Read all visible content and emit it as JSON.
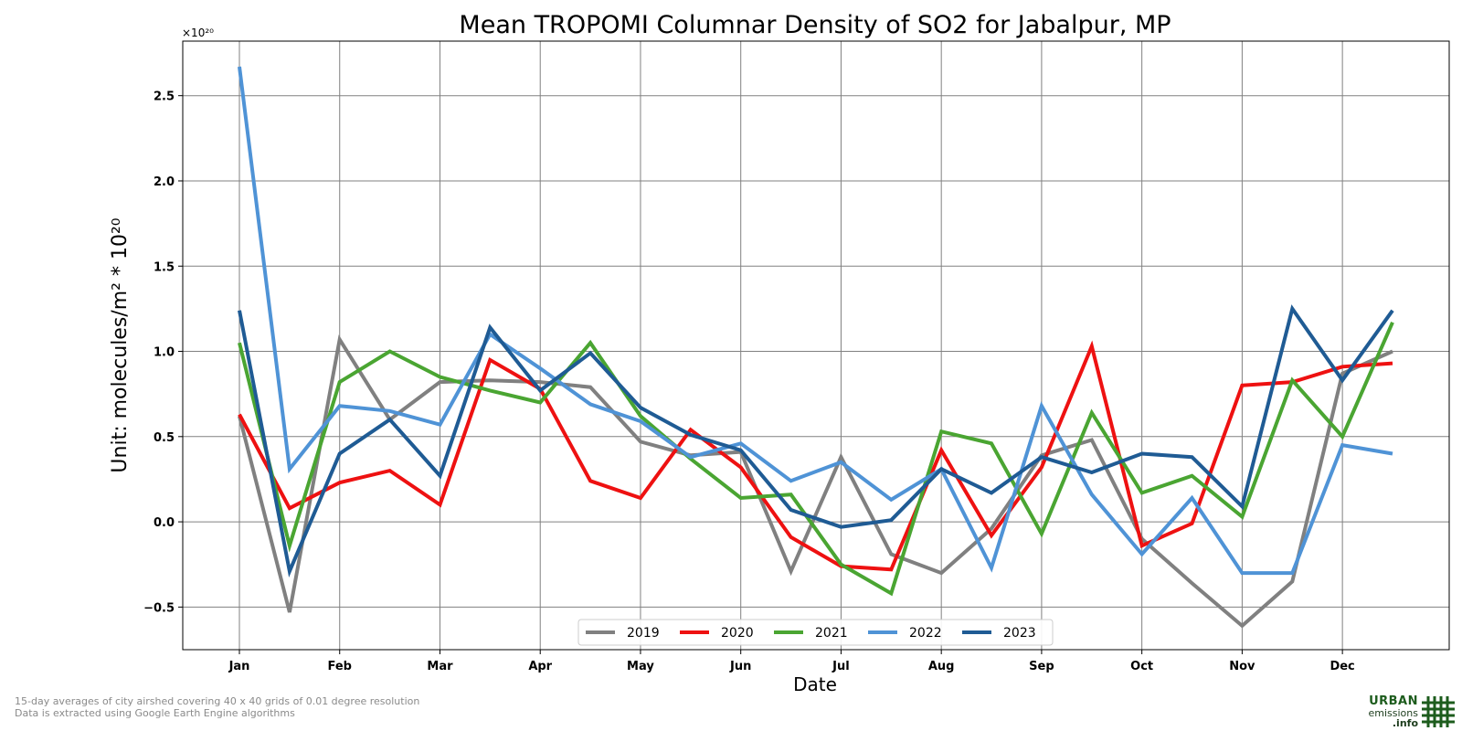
{
  "chart_data": {
    "type": "line",
    "title": "Mean TROPOMI Columnar Density of SO2 for Jabalpur, MP",
    "xlabel": "Date",
    "ylabel": "Unit: molecules/m² * 10²⁰",
    "y_offset_label": "×10²⁰",
    "ylim": [
      -0.75,
      2.82
    ],
    "yticks": [
      -0.5,
      0.0,
      0.5,
      1.0,
      1.5,
      2.0,
      2.5
    ],
    "ytick_labels": [
      "−0.5",
      "0.0",
      "0.5",
      "1.0",
      "1.5",
      "2.0",
      "2.5"
    ],
    "xtick_labels": [
      "Jan",
      "Feb",
      "Mar",
      "Apr",
      "May",
      "Jun",
      "Jul",
      "Aug",
      "Sep",
      "Oct",
      "Nov",
      "Dec"
    ],
    "grid": true,
    "legend_position": "bottom-center",
    "series": [
      {
        "name": "2019",
        "color": "#808080",
        "values": [
          0.62,
          -0.53,
          1.07,
          0.6,
          0.82,
          0.83,
          0.82,
          0.79,
          0.47,
          0.39,
          0.41,
          -0.29,
          0.38,
          -0.19,
          -0.3,
          -0.04,
          0.39,
          0.48,
          -0.1,
          -0.36,
          -0.61,
          -0.35,
          0.87,
          1.0
        ]
      },
      {
        "name": "2020",
        "color": "#ee1111",
        "values": [
          0.63,
          0.08,
          0.23,
          0.3,
          0.1,
          0.95,
          0.78,
          0.24,
          0.14,
          0.54,
          0.32,
          -0.09,
          -0.26,
          -0.28,
          0.42,
          -0.08,
          0.32,
          1.03,
          -0.14,
          -0.01,
          0.8,
          0.82,
          0.91,
          0.93
        ]
      },
      {
        "name": "2021",
        "color": "#4aa532",
        "values": [
          1.05,
          -0.14,
          0.82,
          1.0,
          0.85,
          0.77,
          0.7,
          1.05,
          0.62,
          0.37,
          0.14,
          0.16,
          -0.25,
          -0.42,
          0.53,
          0.46,
          -0.07,
          0.64,
          0.17,
          0.27,
          0.03,
          0.83,
          0.5,
          1.17
        ]
      },
      {
        "name": "2022",
        "color": "#4f93d6",
        "values": [
          2.67,
          0.31,
          0.68,
          0.65,
          0.57,
          1.1,
          0.9,
          0.69,
          0.59,
          0.38,
          0.46,
          0.24,
          0.35,
          0.13,
          0.31,
          -0.27,
          0.68,
          0.16,
          -0.19,
          0.14,
          -0.3,
          -0.3,
          0.45,
          0.4
        ]
      },
      {
        "name": "2023",
        "color": "#1f5b94",
        "values": [
          1.24,
          -0.29,
          0.4,
          0.6,
          0.27,
          1.14,
          0.77,
          0.99,
          0.67,
          0.51,
          0.42,
          0.07,
          -0.03,
          0.01,
          0.31,
          0.17,
          0.38,
          0.29,
          0.4,
          0.38,
          0.09,
          1.25,
          0.83,
          1.24
        ]
      }
    ]
  },
  "footnotes": {
    "line1": "15-day averages of city airshed covering 40 x 40 grids of 0.01 degree resolution",
    "line2": "Data is extracted using Google Earth Engine algorithms"
  },
  "logo": {
    "line1": "URBAN",
    "line2": "emissions",
    "line3": ".info"
  }
}
